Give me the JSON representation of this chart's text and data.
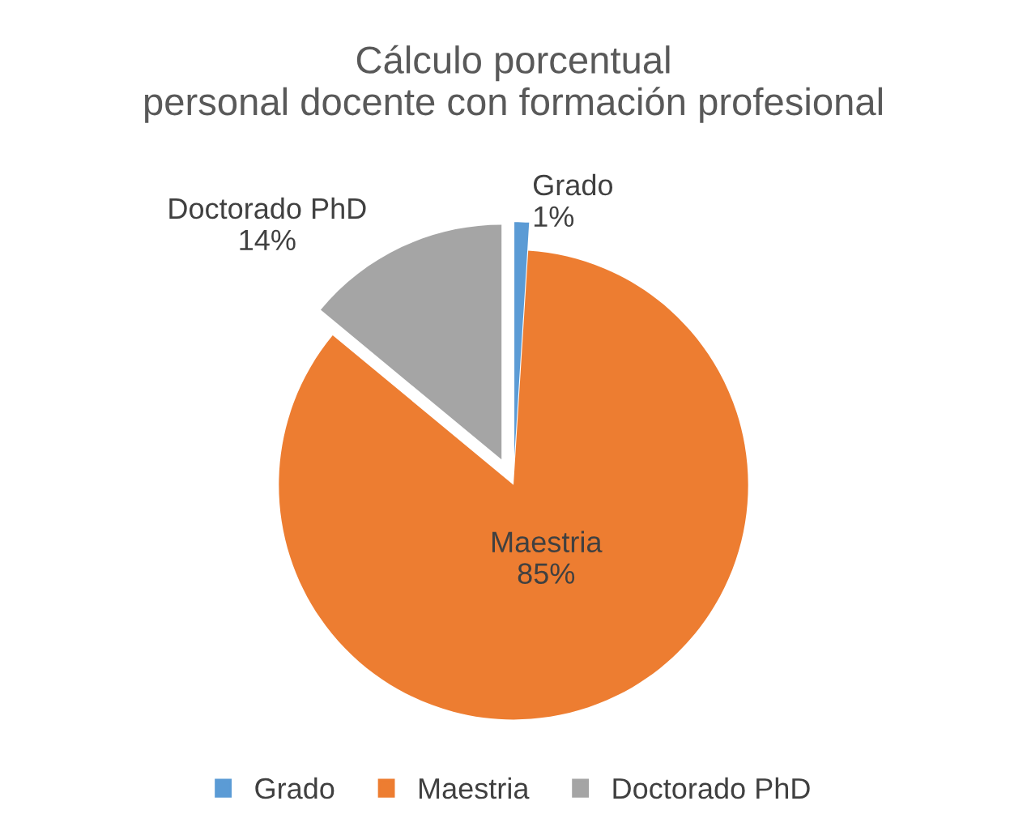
{
  "chart_data": {
    "type": "pie",
    "title": "Cálculo porcentual\npersonal docente con formación profesional",
    "categories": [
      "Grado",
      "Maestria",
      "Doctorado PhD"
    ],
    "values": [
      1,
      85,
      14
    ],
    "value_labels": [
      "1%",
      "85%",
      "14%"
    ],
    "colors": [
      "#5b9bd5",
      "#ed7d31",
      "#a5a5a5"
    ],
    "legend": "bottom"
  }
}
